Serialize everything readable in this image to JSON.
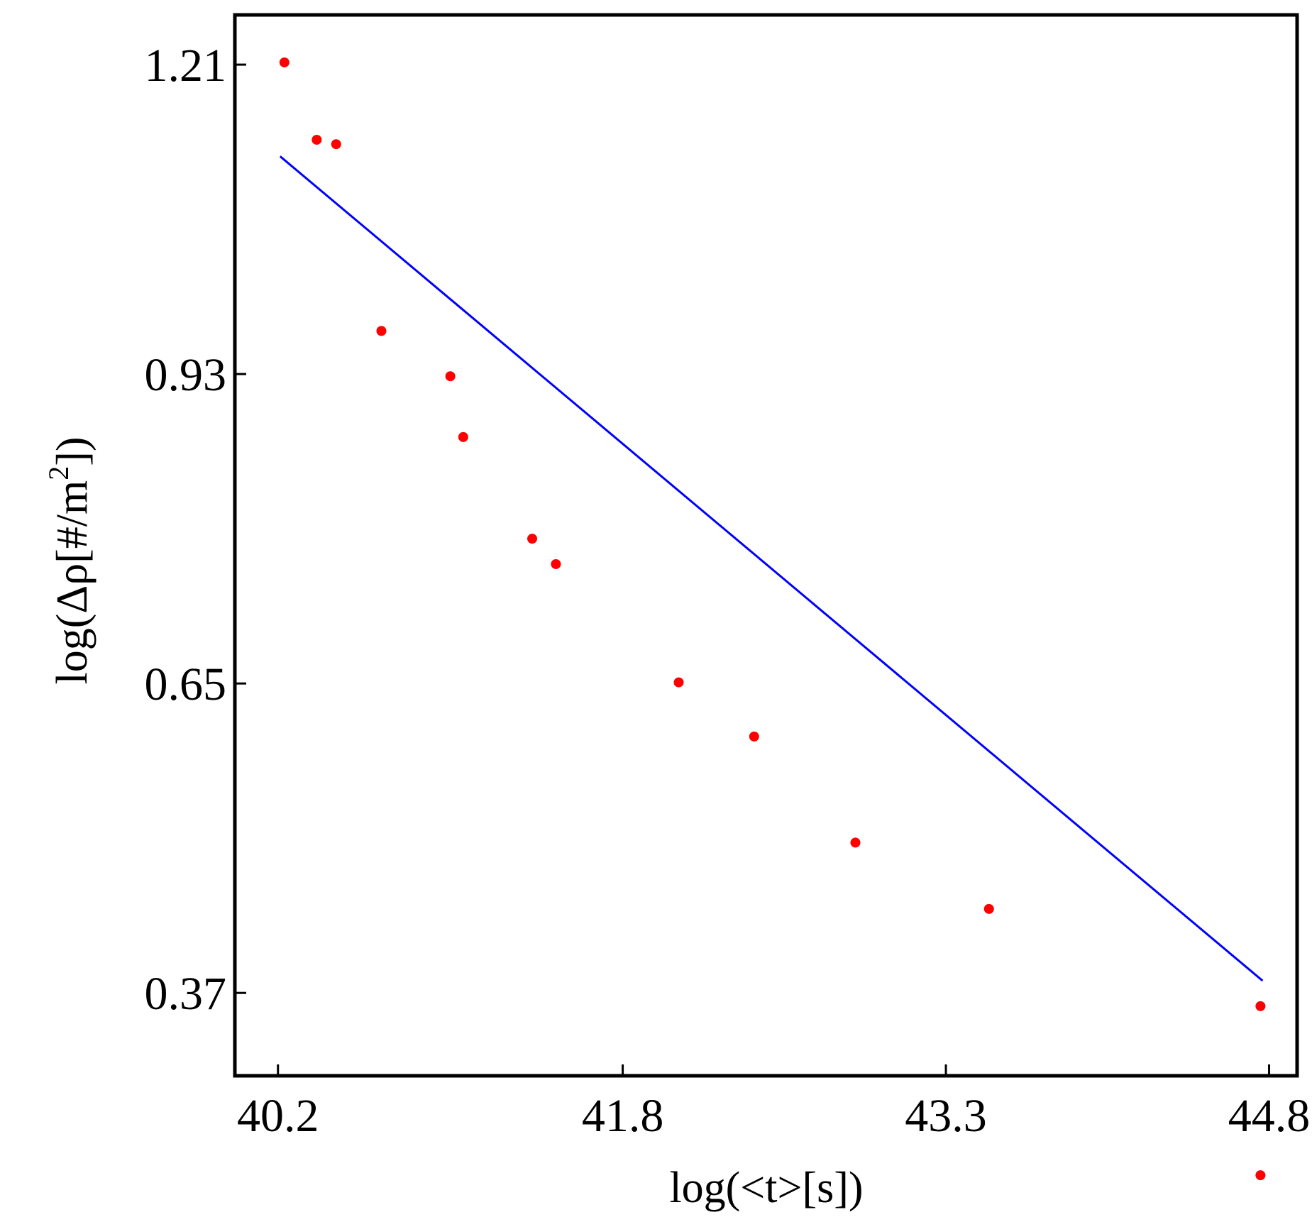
{
  "chart_data": {
    "type": "scatter",
    "xlabel": "log(<t>[s])",
    "ylabel": {
      "main": "log(Δρ[#/m",
      "sup": "2",
      "tail": "])"
    },
    "xlim": [
      40.0,
      44.93
    ],
    "ylim": [
      0.295,
      1.255
    ],
    "xticks": [
      40.2,
      41.8,
      43.3,
      44.8
    ],
    "xtick_labels": [
      "40.2",
      "41.8",
      "43.3",
      "44.8"
    ],
    "yticks": [
      1.21,
      0.93,
      0.65,
      0.37
    ],
    "ytick_labels": [
      "1.21",
      "0.93",
      "0.65",
      "0.37"
    ],
    "grid": false,
    "series": [
      {
        "kind": "points",
        "color": "#ff0000",
        "x": [
          40.23,
          40.38,
          40.47,
          40.68,
          41.0,
          41.06,
          41.38,
          41.49,
          42.06,
          42.41,
          42.88,
          43.5,
          44.76,
          44.76
        ],
        "y": [
          1.212,
          1.142,
          1.138,
          0.969,
          0.928,
          0.873,
          0.781,
          0.758,
          0.651,
          0.602,
          0.506,
          0.446,
          0.358,
          0.205
        ]
      },
      {
        "kind": "fit-line",
        "color": "#0000ff",
        "x": [
          40.21,
          44.77
        ],
        "y": [
          1.127,
          0.381
        ]
      }
    ]
  }
}
